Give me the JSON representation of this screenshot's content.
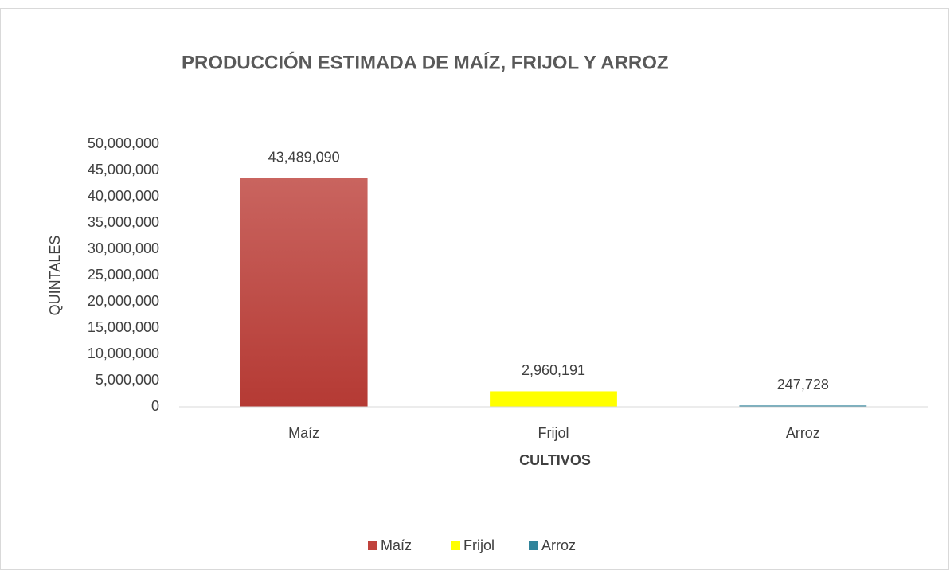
{
  "chart_data": {
    "type": "bar",
    "title": "PRODUCCIÓN ESTIMADA DE MAÍZ, FRIJOL Y ARROZ",
    "x_label": "CULTIVOS",
    "y_label": "QUINTALES",
    "categories": [
      "Maíz",
      "Frijol",
      "Arroz"
    ],
    "values": [
      43489090,
      2960191,
      247728
    ],
    "value_labels": [
      "43,489,090",
      "2,960,191",
      "247,728"
    ],
    "colors": [
      "#c0423c",
      "#ffff00",
      "#31849b"
    ],
    "ylim": [
      0,
      50000000
    ],
    "yticks": [
      0,
      {
        "value": 5000000,
        "label": "5,000,000"
      },
      {
        "value": 10000000,
        "label": "10,000,000"
      },
      {
        "value": 15000000,
        "label": "15,000,000"
      },
      {
        "value": 20000000,
        "label": "20,000,000"
      },
      {
        "value": 25000000,
        "label": "25,000,000"
      },
      {
        "value": 30000000,
        "label": "30,000,000"
      },
      {
        "value": 35000000,
        "label": "35,000,000"
      },
      {
        "value": 40000000,
        "label": "40,000,000"
      },
      {
        "value": 45000000,
        "label": "45,000,000"
      },
      {
        "value": 50000000,
        "label": "50,000,000"
      }
    ],
    "grid": false,
    "legend": "bottom"
  }
}
